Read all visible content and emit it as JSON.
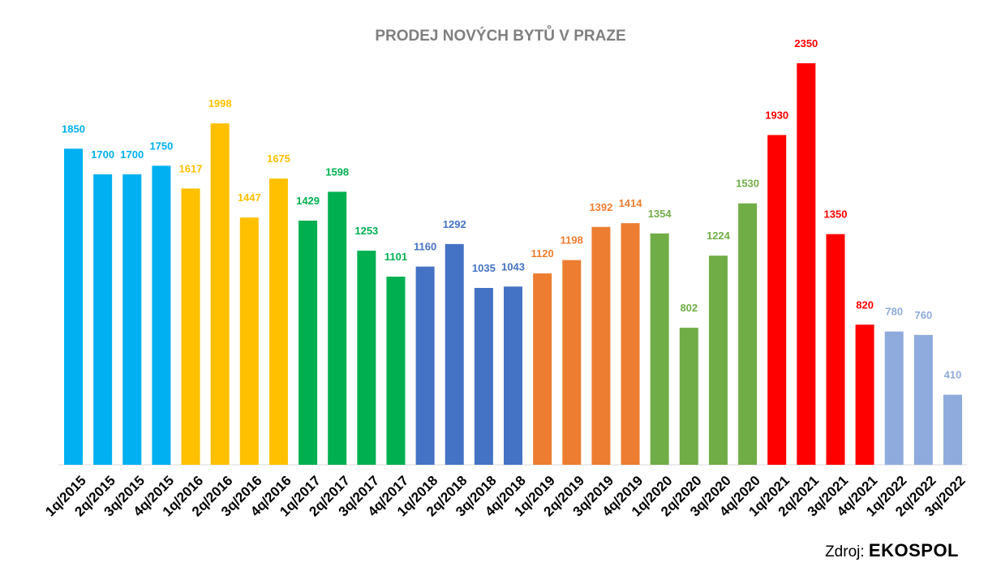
{
  "chart_data": {
    "type": "bar",
    "title": "PRODEJ NOVÝCH BYTŮ V PRAZE",
    "categories": [
      "1q/2015",
      "2q/2015",
      "3q/2015",
      "4q/2015",
      "1q/2016",
      "2q/2016",
      "3q/2016",
      "4q/2016",
      "1q/2017",
      "2q/2017",
      "3q/2017",
      "4q/2017",
      "1q/2018",
      "2q/2018",
      "3q/2018",
      "4q/2018",
      "1q/2019",
      "2q/2019",
      "3q/2019",
      "4q/2019",
      "1q/2020",
      "2q/2020",
      "3q/2020",
      "4q/2020",
      "1q/2021",
      "2q/2021",
      "3q/2021",
      "4q/2021",
      "1q/2022",
      "2q/2022",
      "3q/2022"
    ],
    "values": [
      1850,
      1700,
      1700,
      1750,
      1617,
      1998,
      1447,
      1675,
      1429,
      1598,
      1253,
      1101,
      1160,
      1292,
      1035,
      1043,
      1120,
      1198,
      1392,
      1414,
      1354,
      802,
      1224,
      1530,
      1930,
      2350,
      1350,
      820,
      780,
      760,
      410
    ],
    "colors": [
      "#00b0f0",
      "#00b0f0",
      "#00b0f0",
      "#00b0f0",
      "#ffc000",
      "#ffc000",
      "#ffc000",
      "#ffc000",
      "#00b050",
      "#00b050",
      "#00b050",
      "#00b050",
      "#4472c4",
      "#4472c4",
      "#4472c4",
      "#4472c4",
      "#ed7d31",
      "#ed7d31",
      "#ed7d31",
      "#ed7d31",
      "#70ad47",
      "#70ad47",
      "#70ad47",
      "#70ad47",
      "#ff0000",
      "#ff0000",
      "#ff0000",
      "#ff0000",
      "#8faadc",
      "#8faadc",
      "#8faadc"
    ],
    "ylim": [
      0,
      2350
    ],
    "grid": false,
    "legend": "none",
    "data_labels": true,
    "xlabel": "",
    "ylabel": ""
  },
  "source": {
    "prefix": "Zdroj:",
    "name": "EKOSPOL"
  }
}
